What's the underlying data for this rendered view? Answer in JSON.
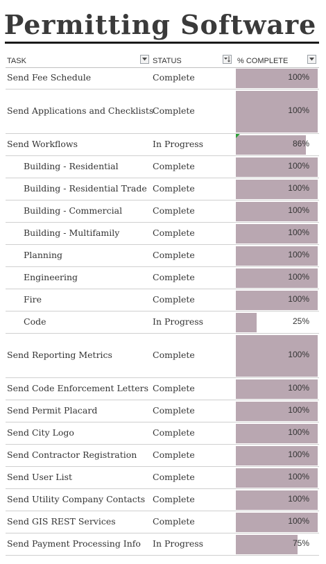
{
  "title": "Permitting Software",
  "headers": {
    "task": "TASK",
    "status": "STATUS",
    "complete": "% COMPLETE"
  },
  "rows": [
    {
      "task": "Send Fee Schedule",
      "status": "Complete",
      "percent": 100,
      "percent_label": "100%",
      "indent": false,
      "tall": false
    },
    {
      "task": "Send Applications and Checklists",
      "status": "Complete",
      "percent": 100,
      "percent_label": "100%",
      "indent": false,
      "tall": true
    },
    {
      "task": "Send Workflows",
      "status": "In Progress",
      "percent": 86,
      "percent_label": "86%",
      "indent": false,
      "tall": false,
      "flag": true
    },
    {
      "task": "Building - Residential",
      "status": "Complete",
      "percent": 100,
      "percent_label": "100%",
      "indent": true,
      "tall": false
    },
    {
      "task": "Building - Residential Trade",
      "status": "Complete",
      "percent": 100,
      "percent_label": "100%",
      "indent": true,
      "tall": false
    },
    {
      "task": "Building - Commercial",
      "status": "Complete",
      "percent": 100,
      "percent_label": "100%",
      "indent": true,
      "tall": false
    },
    {
      "task": "Building - Multifamily",
      "status": "Complete",
      "percent": 100,
      "percent_label": "100%",
      "indent": true,
      "tall": false
    },
    {
      "task": "Planning",
      "status": "Complete",
      "percent": 100,
      "percent_label": "100%",
      "indent": true,
      "tall": false
    },
    {
      "task": "Engineering",
      "status": "Complete",
      "percent": 100,
      "percent_label": "100%",
      "indent": true,
      "tall": false
    },
    {
      "task": "Fire",
      "status": "Complete",
      "percent": 100,
      "percent_label": "100%",
      "indent": true,
      "tall": false
    },
    {
      "task": "Code",
      "status": "In Progress",
      "percent": 25,
      "percent_label": "25%",
      "indent": true,
      "tall": false
    },
    {
      "task": "Send Reporting Metrics",
      "status": "Complete",
      "percent": 100,
      "percent_label": "100%",
      "indent": false,
      "tall": true
    },
    {
      "task": "Send Code Enforcement Letters",
      "status": "Complete",
      "percent": 100,
      "percent_label": "100%",
      "indent": false,
      "tall": false
    },
    {
      "task": "Send Permit Placard",
      "status": "Complete",
      "percent": 100,
      "percent_label": "100%",
      "indent": false,
      "tall": false
    },
    {
      "task": "Send City Logo",
      "status": "Complete",
      "percent": 100,
      "percent_label": "100%",
      "indent": false,
      "tall": false
    },
    {
      "task": "Send Contractor Registration",
      "status": "Complete",
      "percent": 100,
      "percent_label": "100%",
      "indent": false,
      "tall": false
    },
    {
      "task": "Send User List",
      "status": "Complete",
      "percent": 100,
      "percent_label": "100%",
      "indent": false,
      "tall": false
    },
    {
      "task": "Send Utility Company Contacts",
      "status": "Complete",
      "percent": 100,
      "percent_label": "100%",
      "indent": false,
      "tall": false
    },
    {
      "task": "Send GIS REST Services",
      "status": "Complete",
      "percent": 100,
      "percent_label": "100%",
      "indent": false,
      "tall": false
    },
    {
      "task": "Send Payment Processing Info",
      "status": "In Progress",
      "percent": 75,
      "percent_label": "75%",
      "indent": false,
      "tall": false
    }
  ],
  "colors": {
    "bar": "#b9a7b1",
    "title": "#3a3a3a",
    "flag": "#2e9e3a"
  }
}
